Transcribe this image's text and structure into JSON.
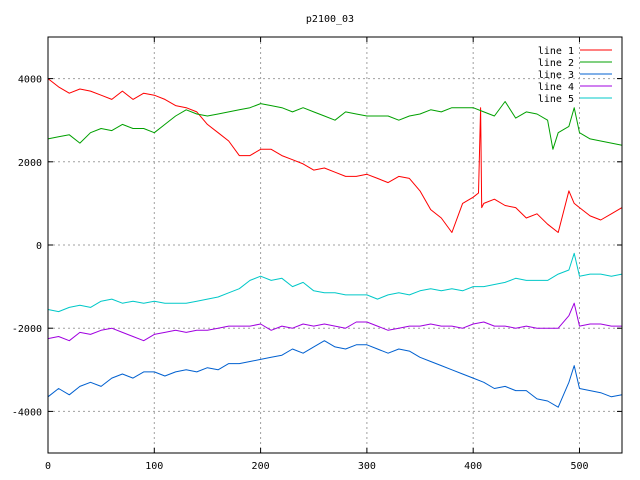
{
  "chart_data": {
    "type": "line",
    "title": "p2100_03",
    "xlabel": "",
    "ylabel": "",
    "xlim": [
      0,
      540
    ],
    "ylim": [
      -5000,
      5000
    ],
    "x_ticks": [
      0,
      100,
      200,
      300,
      400,
      500
    ],
    "y_ticks": [
      -4000,
      -2000,
      0,
      2000,
      4000
    ],
    "grid": true,
    "legend_position": "top-right",
    "series": [
      {
        "name": "line 1",
        "color": "#ff0000",
        "x": [
          0,
          10,
          20,
          30,
          40,
          50,
          60,
          70,
          80,
          90,
          100,
          110,
          120,
          130,
          140,
          150,
          160,
          170,
          180,
          190,
          200,
          210,
          220,
          230,
          240,
          250,
          260,
          270,
          280,
          290,
          300,
          310,
          320,
          330,
          340,
          350,
          360,
          370,
          380,
          390,
          400,
          405,
          407,
          408,
          410,
          420,
          430,
          440,
          450,
          460,
          470,
          480,
          490,
          495,
          500,
          510,
          520,
          530,
          540
        ],
        "y": [
          4000,
          3800,
          3650,
          3750,
          3700,
          3600,
          3500,
          3700,
          3500,
          3650,
          3600,
          3500,
          3350,
          3300,
          3200,
          2900,
          2700,
          2500,
          2150,
          2150,
          2300,
          2300,
          2150,
          2050,
          1950,
          1800,
          1850,
          1750,
          1650,
          1650,
          1700,
          1600,
          1500,
          1650,
          1600,
          1300,
          850,
          650,
          300,
          1000,
          1150,
          1250,
          3300,
          900,
          1000,
          1100,
          950,
          900,
          650,
          750,
          500,
          300,
          1300,
          1000,
          900,
          700,
          600,
          750,
          900
        ]
      },
      {
        "name": "line 2",
        "color": "#00a000",
        "x": [
          0,
          10,
          20,
          30,
          40,
          50,
          60,
          70,
          80,
          90,
          100,
          110,
          120,
          130,
          140,
          150,
          160,
          170,
          180,
          190,
          200,
          210,
          220,
          230,
          240,
          250,
          260,
          270,
          280,
          290,
          300,
          310,
          320,
          330,
          340,
          350,
          360,
          370,
          380,
          390,
          400,
          410,
          420,
          430,
          440,
          450,
          460,
          470,
          475,
          480,
          490,
          495,
          500,
          510,
          520,
          530,
          540
        ],
        "y": [
          2550,
          2600,
          2650,
          2450,
          2700,
          2800,
          2750,
          2900,
          2800,
          2800,
          2700,
          2900,
          3100,
          3250,
          3150,
          3100,
          3150,
          3200,
          3250,
          3300,
          3400,
          3350,
          3300,
          3200,
          3300,
          3200,
          3100,
          3000,
          3200,
          3150,
          3100,
          3100,
          3100,
          3000,
          3100,
          3150,
          3250,
          3200,
          3300,
          3300,
          3300,
          3200,
          3100,
          3450,
          3050,
          3200,
          3150,
          3000,
          2300,
          2700,
          2850,
          3300,
          2700,
          2550,
          2500,
          2450,
          2400
        ]
      },
      {
        "name": "line 3",
        "color": "#0060d0",
        "x": [
          0,
          10,
          20,
          30,
          40,
          50,
          60,
          70,
          80,
          90,
          100,
          110,
          120,
          130,
          140,
          150,
          160,
          170,
          180,
          190,
          200,
          210,
          220,
          230,
          240,
          250,
          260,
          270,
          280,
          290,
          300,
          310,
          320,
          330,
          340,
          350,
          360,
          370,
          380,
          390,
          400,
          410,
          420,
          430,
          440,
          450,
          460,
          470,
          480,
          490,
          495,
          500,
          510,
          520,
          530,
          540
        ],
        "y": [
          -3650,
          -3450,
          -3600,
          -3400,
          -3300,
          -3400,
          -3200,
          -3100,
          -3200,
          -3050,
          -3050,
          -3150,
          -3050,
          -3000,
          -3050,
          -2950,
          -3000,
          -2850,
          -2850,
          -2800,
          -2750,
          -2700,
          -2650,
          -2500,
          -2600,
          -2450,
          -2300,
          -2450,
          -2500,
          -2400,
          -2400,
          -2500,
          -2600,
          -2500,
          -2550,
          -2700,
          -2800,
          -2900,
          -3000,
          -3100,
          -3200,
          -3300,
          -3450,
          -3400,
          -3500,
          -3500,
          -3700,
          -3750,
          -3900,
          -3300,
          -2900,
          -3450,
          -3500,
          -3550,
          -3650,
          -3600
        ]
      },
      {
        "name": "line 4",
        "color": "#a000e0",
        "x": [
          0,
          10,
          20,
          30,
          40,
          50,
          60,
          70,
          80,
          90,
          100,
          110,
          120,
          130,
          140,
          150,
          160,
          170,
          180,
          190,
          200,
          210,
          220,
          230,
          240,
          250,
          260,
          270,
          280,
          290,
          300,
          310,
          320,
          330,
          340,
          350,
          360,
          370,
          380,
          390,
          400,
          410,
          420,
          430,
          440,
          450,
          460,
          470,
          480,
          490,
          495,
          500,
          510,
          520,
          530,
          540
        ],
        "y": [
          -2250,
          -2200,
          -2300,
          -2100,
          -2150,
          -2050,
          -2000,
          -2100,
          -2200,
          -2300,
          -2150,
          -2100,
          -2050,
          -2100,
          -2050,
          -2050,
          -2000,
          -1950,
          -1950,
          -1950,
          -1900,
          -2050,
          -1950,
          -2000,
          -1900,
          -1950,
          -1900,
          -1950,
          -2000,
          -1850,
          -1850,
          -1950,
          -2050,
          -2000,
          -1950,
          -1950,
          -1900,
          -1950,
          -1950,
          -2000,
          -1900,
          -1850,
          -1950,
          -1950,
          -2000,
          -1950,
          -2000,
          -2000,
          -2000,
          -1700,
          -1400,
          -1950,
          -1900,
          -1900,
          -1950,
          -1950
        ]
      },
      {
        "name": "line 5",
        "color": "#00c8c8",
        "x": [
          0,
          10,
          20,
          30,
          40,
          50,
          60,
          70,
          80,
          90,
          100,
          110,
          120,
          130,
          140,
          150,
          160,
          170,
          180,
          190,
          200,
          210,
          220,
          230,
          240,
          250,
          260,
          270,
          280,
          290,
          300,
          310,
          320,
          330,
          340,
          350,
          360,
          370,
          380,
          390,
          400,
          410,
          420,
          430,
          440,
          450,
          460,
          470,
          480,
          490,
          495,
          500,
          510,
          520,
          530,
          540
        ],
        "y": [
          -1550,
          -1600,
          -1500,
          -1450,
          -1500,
          -1350,
          -1300,
          -1400,
          -1350,
          -1400,
          -1350,
          -1400,
          -1400,
          -1400,
          -1350,
          -1300,
          -1250,
          -1150,
          -1050,
          -850,
          -750,
          -850,
          -800,
          -1000,
          -900,
          -1100,
          -1150,
          -1150,
          -1200,
          -1200,
          -1200,
          -1300,
          -1200,
          -1150,
          -1200,
          -1100,
          -1050,
          -1100,
          -1050,
          -1100,
          -1000,
          -1000,
          -950,
          -900,
          -800,
          -850,
          -850,
          -850,
          -700,
          -600,
          -200,
          -750,
          -700,
          -700,
          -750,
          -700
        ]
      }
    ]
  }
}
